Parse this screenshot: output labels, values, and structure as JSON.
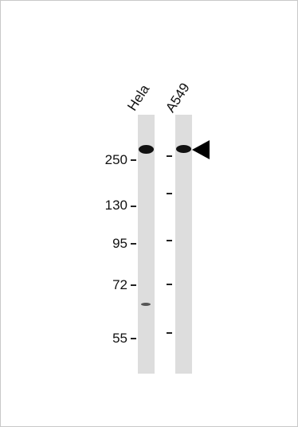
{
  "lanes": [
    {
      "label": "Hela"
    },
    {
      "label": "A549"
    }
  ],
  "markers": [
    {
      "label": "250"
    },
    {
      "label": "130"
    },
    {
      "label": "95"
    },
    {
      "label": "72"
    },
    {
      "label": "55"
    }
  ]
}
